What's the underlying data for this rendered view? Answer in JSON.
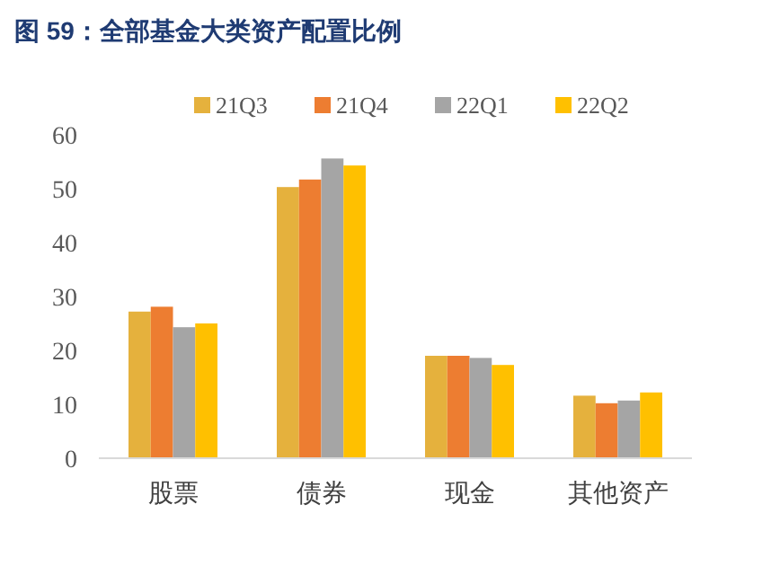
{
  "chart_data": {
    "type": "bar",
    "title": "图 59：全部基金大类资产配置比例",
    "categories": [
      "股票",
      "债券",
      "现金",
      "其他资产"
    ],
    "series": [
      {
        "name": "21Q3",
        "color": "#e5b13d",
        "values": [
          27.2,
          50.3,
          19.0,
          11.6
        ]
      },
      {
        "name": "21Q4",
        "color": "#ed7d31",
        "values": [
          28.1,
          51.7,
          19.0,
          10.2
        ]
      },
      {
        "name": "22Q1",
        "color": "#a5a5a5",
        "values": [
          24.3,
          55.6,
          18.6,
          10.7
        ]
      },
      {
        "name": "22Q2",
        "color": "#ffc000",
        "values": [
          25.0,
          54.3,
          17.3,
          12.2
        ]
      }
    ],
    "ylim": [
      0,
      60
    ],
    "yticks": [
      0,
      10,
      20,
      30,
      40,
      50,
      60
    ],
    "grid": false,
    "legend": "top"
  }
}
